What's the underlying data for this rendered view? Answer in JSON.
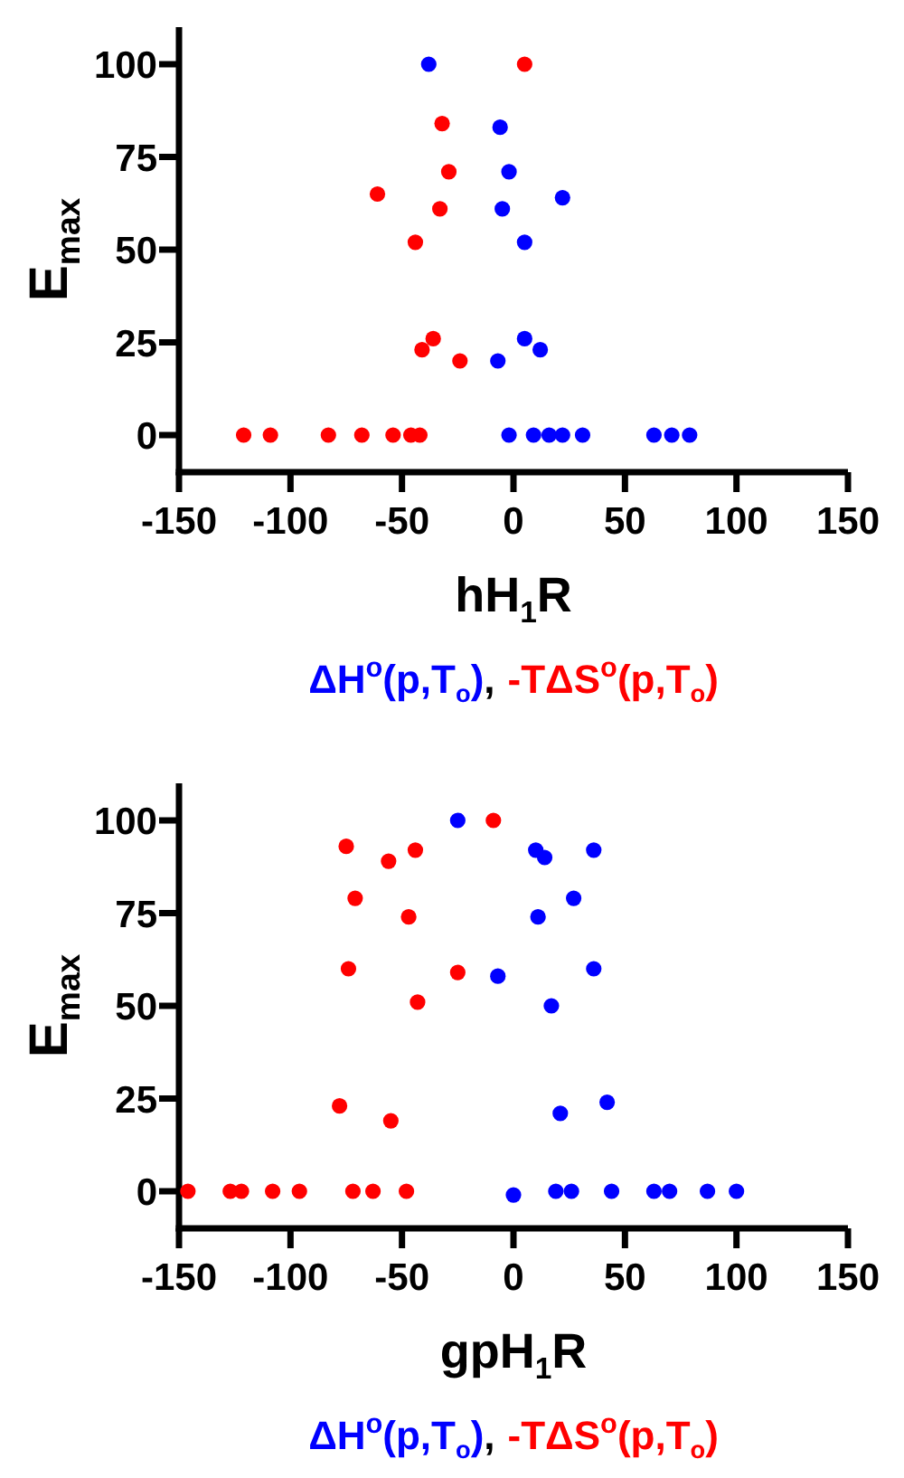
{
  "chart_data": [
    {
      "type": "scatter",
      "xlabel": "hH$_{1}$R",
      "ylabel": "E$_{max}$",
      "xlim": [
        -150,
        150
      ],
      "ylim": [
        -10,
        110
      ],
      "xticks": [
        -150,
        -100,
        -50,
        0,
        50,
        100,
        150
      ],
      "yticks": [
        0,
        25,
        50,
        75,
        100
      ],
      "marker": "circle",
      "legend": "bottom",
      "annotations": [
        ","
      ],
      "series": [
        {
          "name": "ΔH$^{o}$(p,T$_{o}$)",
          "color": "#0000ff",
          "x": [
            -38,
            -6,
            -2,
            22,
            -5,
            5,
            5,
            12,
            -7,
            -2,
            9,
            16,
            22,
            31,
            63,
            71,
            79
          ],
          "values": [
            100,
            83,
            71,
            64,
            61,
            52,
            26,
            23,
            20,
            0,
            0,
            0,
            0,
            0,
            0,
            0,
            0
          ]
        },
        {
          "name": "-TΔS$^{o}$(p,T$_{o}$)",
          "color": "#ff0000",
          "x": [
            5,
            -32,
            -29,
            -61,
            -33,
            -44,
            -36,
            -41,
            -24,
            -121,
            -109,
            -83,
            -68,
            -54,
            -46,
            -42
          ],
          "values": [
            100,
            84,
            71,
            65,
            61,
            52,
            26,
            23,
            20,
            0,
            0,
            0,
            0,
            0,
            0,
            0
          ]
        }
      ]
    },
    {
      "type": "scatter",
      "xlabel": "gpH$_{1}$R",
      "ylabel": "E$_{max}$",
      "xlim": [
        -150,
        150
      ],
      "ylim": [
        -10,
        110
      ],
      "xticks": [
        -150,
        -100,
        -50,
        0,
        50,
        100,
        150
      ],
      "yticks": [
        0,
        25,
        50,
        75,
        100
      ],
      "marker": "circle",
      "legend": "bottom",
      "annotations": [
        ","
      ],
      "series": [
        {
          "name": "ΔH$^{o}$(p,T$_{o}$)",
          "color": "#0000ff",
          "x": [
            -25,
            10,
            14,
            36,
            27,
            11,
            36,
            -7,
            17,
            21,
            42,
            0,
            19,
            26,
            44,
            63,
            70,
            87,
            100
          ],
          "values": [
            100,
            92,
            90,
            92,
            79,
            74,
            60,
            58,
            50,
            21,
            24,
            -1,
            0,
            0,
            0,
            0,
            0,
            0,
            0
          ]
        },
        {
          "name": "-TΔS$^{o}$(p,T$_{o}$)",
          "color": "#ff0000",
          "x": [
            -9,
            -75,
            -44,
            -56,
            -71,
            -47,
            -74,
            -25,
            -43,
            -78,
            -55,
            -146,
            -127,
            -122,
            -108,
            -96,
            -72,
            -63,
            -48
          ],
          "values": [
            100,
            93,
            92,
            89,
            79,
            74,
            60,
            59,
            51,
            23,
            19,
            0,
            0,
            0,
            0,
            0,
            0,
            0,
            0
          ]
        }
      ]
    }
  ]
}
